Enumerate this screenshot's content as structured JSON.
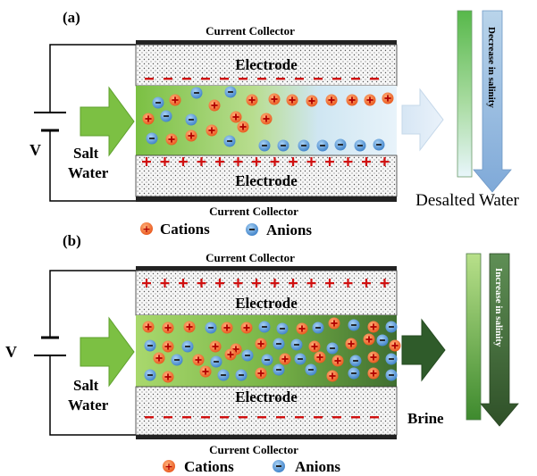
{
  "panel_a": {
    "label": "(a)",
    "current_collector_top": "Current Collector",
    "current_collector_bottom": "Current Collector",
    "electrode_top": "Electrode",
    "electrode_bottom": "Electrode",
    "voltage": "V",
    "salt_water_line1": "Salt",
    "salt_water_line2": "Water",
    "output_label": "Desalted Water",
    "salinity_label": "Decrease in salinity",
    "legend_cations": "Cations",
    "legend_anions": "Anions"
  },
  "panel_b": {
    "label": "(b)",
    "current_collector_top": "Current Collector",
    "current_collector_bottom": "Current Collector",
    "electrode_top": "Electrode",
    "electrode_bottom": "Electrode",
    "voltage": "V",
    "salt_water_line1": "Salt",
    "salt_water_line2": "Water",
    "output_label": "Brine",
    "salinity_label": "Increase in salinity",
    "legend_cations": "Cations",
    "legend_anions": "Anions"
  },
  "colors": {
    "cation": "#f26522",
    "anion": "#4a90d9",
    "arrow_green": "#6abf3f",
    "dark_green": "#2e5b2a",
    "minus_mark": "#d01010",
    "plus_mark": "#d01010"
  }
}
